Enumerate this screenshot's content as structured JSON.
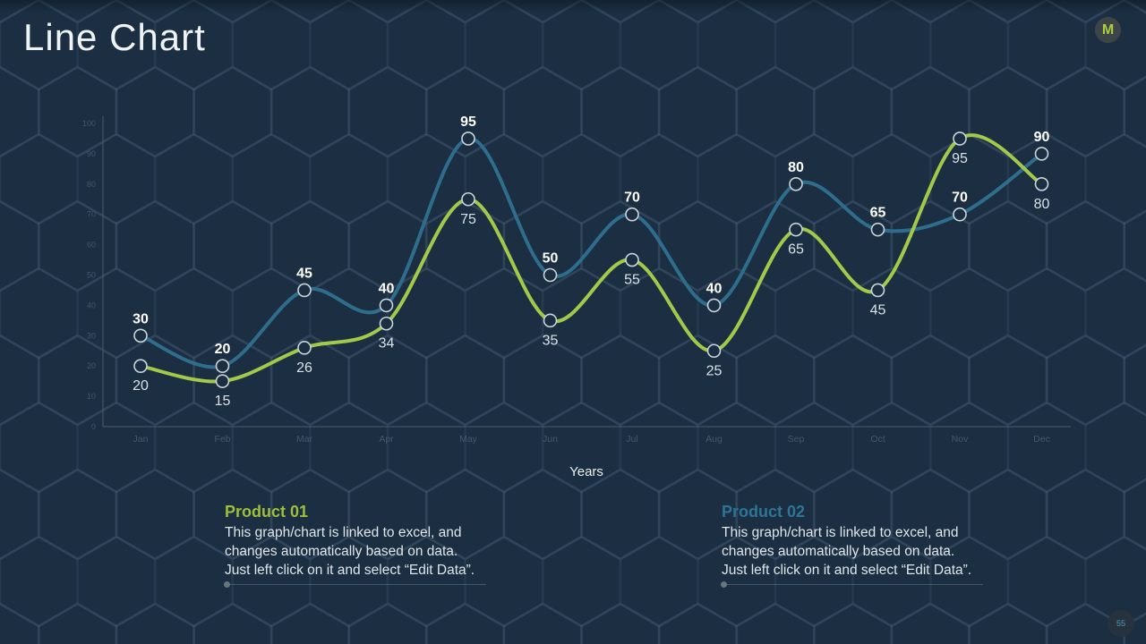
{
  "slide": {
    "title": "Line Chart",
    "logo_letter": "M",
    "page_number": "55"
  },
  "chart_data": {
    "type": "line",
    "categories": [
      "Jan",
      "Feb",
      "Mar",
      "Apr",
      "May",
      "Jun",
      "Jul",
      "Aug",
      "Sep",
      "Oct",
      "Nov",
      "Dec"
    ],
    "series": [
      {
        "name": "Product 01",
        "color": "#a3c94b",
        "values": [
          20,
          15,
          26,
          34,
          75,
          35,
          55,
          25,
          65,
          45,
          95,
          80
        ],
        "label_position": "below",
        "label_color": "#d9e2e7",
        "label_weight": "normal"
      },
      {
        "name": "Product 02",
        "color": "#2e6e8c",
        "values": [
          30,
          20,
          45,
          40,
          95,
          50,
          70,
          40,
          80,
          65,
          70,
          90
        ],
        "label_position": "above",
        "label_color": "#ffffff",
        "label_weight": "bold"
      }
    ],
    "title": "",
    "xlabel": "Years",
    "ylabel": "",
    "ylim": [
      0,
      100
    ],
    "yticks": [
      0,
      10,
      20,
      30,
      40,
      50,
      60,
      70,
      80,
      90,
      100
    ],
    "grid": false,
    "legend_position": "none",
    "marker_stroke": "#c8d4da",
    "marker_fill": "#1c2e41"
  },
  "notes": [
    {
      "heading": "Product 01",
      "heading_color": "#9fbe3a",
      "body_lines": [
        "This graph/chart is linked to excel, and",
        "changes automatically based on data.",
        "Just left click on it and select “Edit Data”."
      ]
    },
    {
      "heading": "Product 02",
      "heading_color": "#2e7595",
      "body_lines": [
        "This graph/chart is linked to excel, and",
        "changes automatically based on data.",
        "Just left click on it and select “Edit Data”."
      ]
    }
  ]
}
